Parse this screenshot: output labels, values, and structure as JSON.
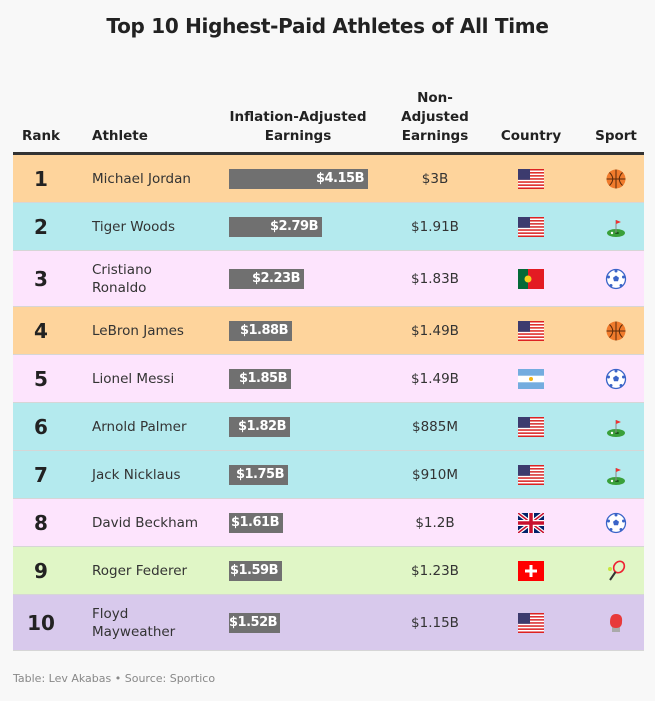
{
  "title": "Top 10 Highest-Paid Athletes of All Time",
  "headers": {
    "rank": "Rank",
    "athlete": "Athlete",
    "inflation": "Inflation-Adjusted Earnings",
    "nonadj": "Non-Adjusted Earnings",
    "country": "Country",
    "sport": "Sport"
  },
  "footer": "Table: Lev Akabas • Source: Sportico",
  "colors": {
    "basketball": "#fed49c",
    "golf": "#b4eaee",
    "soccer": "#fde4fd",
    "tennis": "#e0f6c6",
    "boxing": "#d8c9ec",
    "bar": "#707070"
  },
  "chart_data": {
    "type": "table",
    "title": "Top 10 Highest-Paid Athletes of All Time",
    "columns": [
      "Rank",
      "Athlete",
      "Inflation-Adjusted Earnings",
      "Non-Adjusted Earnings",
      "Country",
      "Sport"
    ],
    "bar_max_billions": 4.15,
    "rows": [
      {
        "rank": "1",
        "athlete": "Michael Jordan",
        "inflation_label": "$4.15B",
        "inflation_value": 4.15,
        "nonadj": "$3B",
        "country": "us",
        "sport": "basketball"
      },
      {
        "rank": "2",
        "athlete": "Tiger Woods",
        "inflation_label": "$2.79B",
        "inflation_value": 2.79,
        "nonadj": "$1.91B",
        "country": "us",
        "sport": "golf"
      },
      {
        "rank": "3",
        "athlete": "Cristiano Ronaldo",
        "inflation_label": "$2.23B",
        "inflation_value": 2.23,
        "nonadj": "$1.83B",
        "country": "pt",
        "sport": "soccer"
      },
      {
        "rank": "4",
        "athlete": "LeBron James",
        "inflation_label": "$1.88B",
        "inflation_value": 1.88,
        "nonadj": "$1.49B",
        "country": "us",
        "sport": "basketball"
      },
      {
        "rank": "5",
        "athlete": "Lionel Messi",
        "inflation_label": "$1.85B",
        "inflation_value": 1.85,
        "nonadj": "$1.49B",
        "country": "ar",
        "sport": "soccer"
      },
      {
        "rank": "6",
        "athlete": "Arnold Palmer",
        "inflation_label": "$1.82B",
        "inflation_value": 1.82,
        "nonadj": "$885M",
        "country": "us",
        "sport": "golf"
      },
      {
        "rank": "7",
        "athlete": "Jack Nicklaus",
        "inflation_label": "$1.75B",
        "inflation_value": 1.75,
        "nonadj": "$910M",
        "country": "us",
        "sport": "golf"
      },
      {
        "rank": "8",
        "athlete": "David Beckham",
        "inflation_label": "$1.61B",
        "inflation_value": 1.61,
        "nonadj": "$1.2B",
        "country": "gb",
        "sport": "soccer"
      },
      {
        "rank": "9",
        "athlete": "Roger Federer",
        "inflation_label": "$1.59B",
        "inflation_value": 1.59,
        "nonadj": "$1.23B",
        "country": "ch",
        "sport": "tennis"
      },
      {
        "rank": "10",
        "athlete": "Floyd Mayweather",
        "inflation_label": "$1.52B",
        "inflation_value": 1.52,
        "nonadj": "$1.15B",
        "country": "us",
        "sport": "boxing"
      }
    ]
  }
}
